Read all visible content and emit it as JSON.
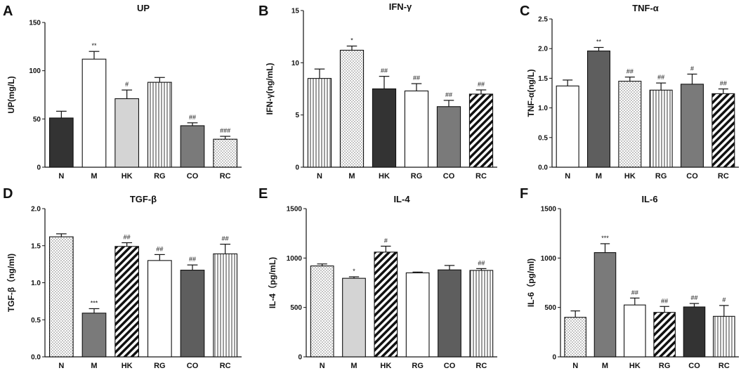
{
  "chart_data": [
    {
      "panel": "A",
      "type": "bar",
      "title": "UP",
      "ylabel": "UP(mg/L)",
      "ylim": [
        0,
        150
      ],
      "ticks": [
        0,
        50,
        100,
        150
      ],
      "categories": [
        "N",
        "M",
        "HK",
        "RG",
        "CO",
        "RC"
      ],
      "values": [
        51,
        112,
        71,
        88,
        43,
        29
      ],
      "errors": [
        7,
        8,
        9,
        5,
        3,
        3
      ],
      "significance": [
        "",
        "**",
        "#",
        "",
        "##",
        "###"
      ],
      "fills": [
        "dark",
        "white",
        "light",
        "vlines",
        "gray",
        "dots"
      ]
    },
    {
      "panel": "B",
      "type": "bar",
      "title": "IFN-γ",
      "ylabel": "IFN-γ(ng/mL)",
      "ylim": [
        0,
        15
      ],
      "ticks": [
        0,
        5,
        10,
        15
      ],
      "categories": [
        "N",
        "M",
        "HK",
        "RG",
        "CO",
        "RC"
      ],
      "values": [
        8.5,
        11.2,
        7.5,
        7.3,
        5.8,
        7.0
      ],
      "errors": [
        0.9,
        0.4,
        1.2,
        0.7,
        0.6,
        0.4
      ],
      "significance": [
        "",
        "*",
        "##",
        "##",
        "##",
        "##"
      ],
      "fills": [
        "vlines",
        "dots",
        "dark",
        "white",
        "gray",
        "diag"
      ]
    },
    {
      "panel": "C",
      "type": "bar",
      "title": "TNF-α",
      "ylabel": "TNF-α(ng/L)",
      "ylim": [
        0,
        2.5
      ],
      "ticks": [
        0.0,
        0.5,
        1.0,
        1.5,
        2.0,
        2.5
      ],
      "categories": [
        "N",
        "M",
        "HK",
        "RG",
        "CO",
        "RC"
      ],
      "values": [
        1.37,
        1.96,
        1.45,
        1.3,
        1.4,
        1.24
      ],
      "errors": [
        0.1,
        0.06,
        0.07,
        0.12,
        0.17,
        0.08
      ],
      "significance": [
        "",
        "**",
        "##",
        "##",
        "#",
        "##"
      ],
      "fills": [
        "white",
        "darkgray",
        "dots",
        "vlines",
        "gray",
        "diag"
      ]
    },
    {
      "panel": "D",
      "type": "bar",
      "title": "TGF-β",
      "ylabel": "TGF-β（ng/ml)",
      "ylim": [
        0,
        2.0
      ],
      "ticks": [
        0.0,
        0.5,
        1.0,
        1.5,
        2.0
      ],
      "categories": [
        "N",
        "M",
        "HK",
        "RG",
        "CO",
        "RC"
      ],
      "values": [
        1.62,
        0.59,
        1.49,
        1.3,
        1.17,
        1.39
      ],
      "errors": [
        0.04,
        0.06,
        0.05,
        0.08,
        0.07,
        0.13
      ],
      "significance": [
        "",
        "***",
        "##",
        "##",
        "##",
        "##"
      ],
      "fills": [
        "dots",
        "gray",
        "diag",
        "white",
        "darkgray",
        "vlines"
      ]
    },
    {
      "panel": "E",
      "type": "bar",
      "title": "IL-4",
      "ylabel": "IL-4（pg/mL)",
      "ylim": [
        0,
        1500
      ],
      "ticks": [
        0,
        500,
        1000,
        1500
      ],
      "categories": [
        "N",
        "M",
        "HK",
        "RG",
        "CO",
        "RC"
      ],
      "values": [
        920,
        795,
        1060,
        850,
        880,
        875
      ],
      "errors": [
        20,
        15,
        60,
        8,
        45,
        18
      ],
      "significance": [
        "",
        "*",
        "#",
        "",
        "",
        "##"
      ],
      "fills": [
        "dots",
        "light",
        "diag",
        "white",
        "darkgray",
        "vlines"
      ]
    },
    {
      "panel": "F",
      "type": "bar",
      "title": "IL-6",
      "ylabel": "IL-6（pg/ml)",
      "ylim": [
        0,
        1500
      ],
      "ticks": [
        0,
        500,
        1000,
        1500
      ],
      "categories": [
        "N",
        "M",
        "HK",
        "RG",
        "CO",
        "RC"
      ],
      "values": [
        400,
        1055,
        525,
        450,
        505,
        410
      ],
      "errors": [
        65,
        90,
        70,
        60,
        35,
        110
      ],
      "significance": [
        "",
        "***",
        "##",
        "##",
        "##",
        "#"
      ],
      "fills": [
        "dots",
        "gray",
        "white",
        "diag",
        "dark",
        "vlines"
      ]
    }
  ]
}
